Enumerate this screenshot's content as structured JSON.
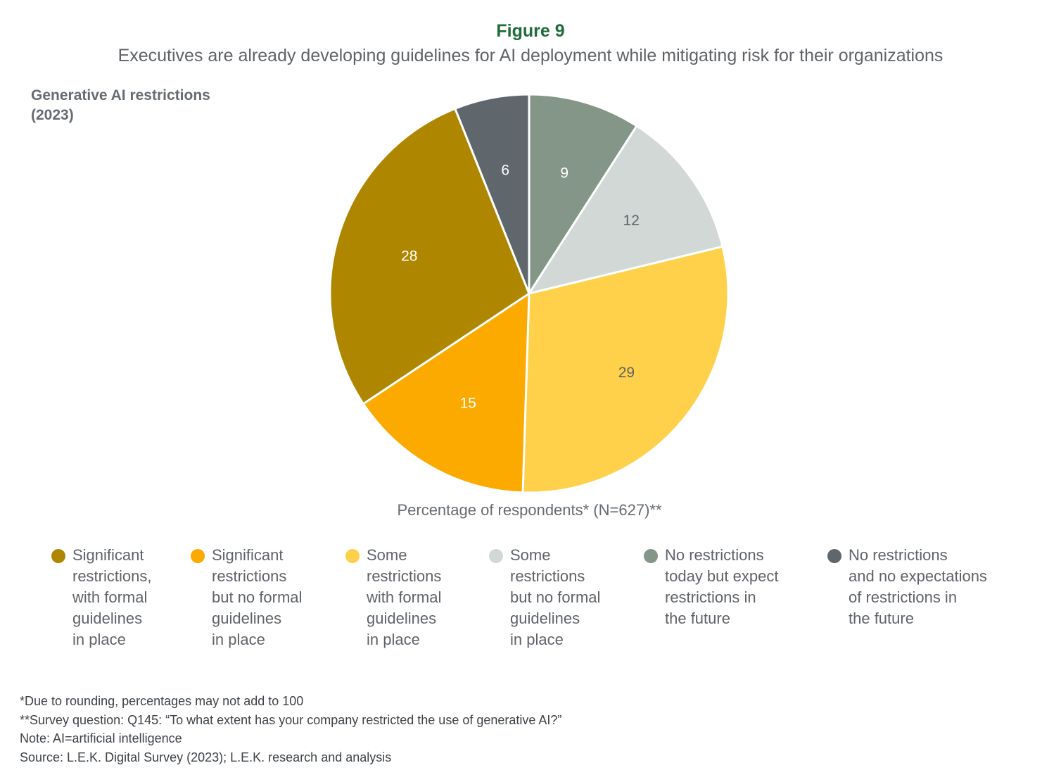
{
  "figure_label": "Figure 9",
  "subtitle": "Executives are already developing guidelines for AI deployment while mitigating risk for their organizations",
  "panel_title": "Generative AI restrictions\n(2023)",
  "measure_label": "Percentage of respondents* (N=627)**",
  "chart_data": {
    "type": "pie",
    "title": "Generative AI restrictions (2023)",
    "unit_label": "Percentage of respondents* (N=627)**",
    "start": "12 o'clock, clockwise",
    "slices": [
      {
        "label": "No restrictions today but expect restrictions in the future",
        "value": 9,
        "color": "#849688",
        "label_color": "#ffffff"
      },
      {
        "label": "Some restrictions but no formal guidelines in place",
        "value": 12,
        "color": "#d1d8d6",
        "label_color": "#5f6368"
      },
      {
        "label": "Some restrictions with formal guidelines in place",
        "value": 29,
        "color": "#ffd049",
        "label_color": "#5f6368"
      },
      {
        "label": "Significant restrictions but no formal guidelines in place",
        "value": 15,
        "color": "#fca900",
        "label_color": "#ffffff"
      },
      {
        "label": "Significant restrictions, with formal guidelines in place",
        "value": 28,
        "color": "#ae8600",
        "label_color": "#ffffff"
      },
      {
        "label": "No restrictions and no expectations of restrictions in the future",
        "value": 6,
        "color": "#5f666c",
        "label_color": "#ffffff"
      }
    ]
  },
  "legend": [
    {
      "text": "Significant\nrestrictions,\nwith formal\nguidelines\nin place",
      "color": "#ae8600"
    },
    {
      "text": "Significant\nrestrictions\nbut no formal\nguidelines\nin place",
      "color": "#fca900"
    },
    {
      "text": "Some\nrestrictions\nwith formal\nguidelines\nin place",
      "color": "#ffd049"
    },
    {
      "text": "Some\nrestrictions\nbut no formal\nguidelines\nin place",
      "color": "#d1d8d6"
    },
    {
      "text": "No restrictions\ntoday but expect\nrestrictions in\nthe future",
      "color": "#849688"
    },
    {
      "text": "No restrictions\nand no expectations\nof restrictions in\nthe future",
      "color": "#5f666c"
    }
  ],
  "footnotes": [
    "*Due to rounding, percentages may not add to 100",
    "**Survey question: Q145: “To what extent has your company restricted the use of generative AI?”",
    "Note: AI=artificial intelligence",
    "Source: L.E.K. Digital Survey (2023); L.E.K. research and analysis"
  ]
}
